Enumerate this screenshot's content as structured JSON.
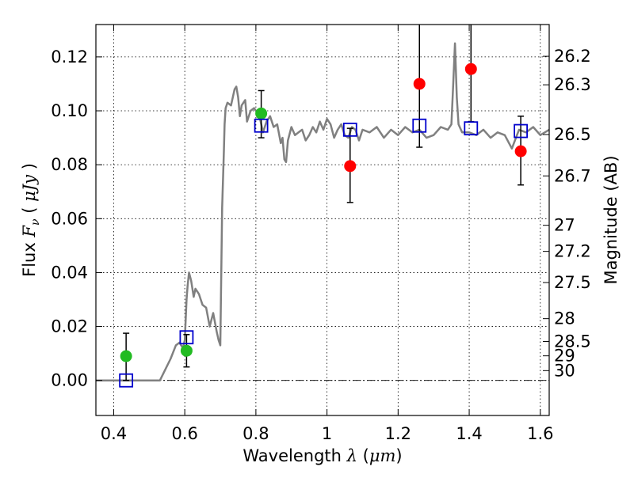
{
  "chart_data": {
    "type": "scatter",
    "x_axis": {
      "label_prefix": "Wavelength ",
      "label_symbol": "λ",
      "label_unit_open": " (",
      "label_unit": "μm",
      "label_unit_close": ")",
      "range": [
        0.35,
        1.625
      ],
      "ticks": [
        {
          "value": 0.4,
          "label": "0.4"
        },
        {
          "value": 0.6,
          "label": "0.6"
        },
        {
          "value": 0.8,
          "label": "0.8"
        },
        {
          "value": 1.0,
          "label": "1"
        },
        {
          "value": 1.2,
          "label": "1.2"
        },
        {
          "value": 1.4,
          "label": "1.4"
        },
        {
          "value": 1.6,
          "label": "1.6"
        }
      ]
    },
    "y_axis_left": {
      "label_prefix": "Flux ",
      "label_symbol": "F",
      "label_subscript": "ν",
      "label_unit_open": " ( ",
      "label_unit": "μJy",
      "label_unit_close": " )",
      "range": [
        -0.013,
        0.132
      ],
      "ticks": [
        {
          "value": 0.0,
          "label": "0.00"
        },
        {
          "value": 0.02,
          "label": "0.02"
        },
        {
          "value": 0.04,
          "label": "0.04"
        },
        {
          "value": 0.06,
          "label": "0.06"
        },
        {
          "value": 0.08,
          "label": "0.08"
        },
        {
          "value": 0.1,
          "label": "0.10"
        },
        {
          "value": 0.12,
          "label": "0.12"
        }
      ]
    },
    "y_axis_right": {
      "label": "Magnitude (AB)",
      "ticks": [
        {
          "value": 26.2,
          "label": "26.2"
        },
        {
          "value": 26.3,
          "label": "26.3"
        },
        {
          "value": 26.5,
          "label": "26.5"
        },
        {
          "value": 26.7,
          "label": "26.7"
        },
        {
          "value": 27,
          "label": "27"
        },
        {
          "value": 27.2,
          "label": "27.2"
        },
        {
          "value": 27.5,
          "label": "27.5"
        },
        {
          "value": 28,
          "label": "28"
        },
        {
          "value": 28.5,
          "label": "28.5"
        },
        {
          "value": 29,
          "label": "29"
        },
        {
          "value": 30,
          "label": "30"
        }
      ]
    },
    "grid": true,
    "zero_line": true,
    "model_spectrum": {
      "color": "#808080",
      "x": [
        0.35,
        0.53,
        0.545,
        0.56,
        0.575,
        0.585,
        0.595,
        0.6,
        0.605,
        0.608,
        0.612,
        0.618,
        0.625,
        0.63,
        0.635,
        0.64,
        0.645,
        0.65,
        0.66,
        0.67,
        0.68,
        0.69,
        0.695,
        0.7,
        0.705,
        0.71,
        0.712,
        0.715,
        0.72,
        0.73,
        0.74,
        0.745,
        0.75,
        0.755,
        0.76,
        0.77,
        0.775,
        0.785,
        0.795,
        0.81,
        0.82,
        0.83,
        0.84,
        0.85,
        0.86,
        0.87,
        0.875,
        0.88,
        0.885,
        0.89,
        0.9,
        0.91,
        0.92,
        0.93,
        0.94,
        0.95,
        0.96,
        0.97,
        0.98,
        0.99,
        1.0,
        1.01,
        1.02,
        1.03,
        1.04,
        1.05,
        1.06,
        1.07,
        1.08,
        1.09,
        1.1,
        1.12,
        1.14,
        1.16,
        1.18,
        1.2,
        1.22,
        1.24,
        1.26,
        1.28,
        1.3,
        1.32,
        1.34,
        1.35,
        1.355,
        1.36,
        1.365,
        1.37,
        1.38,
        1.4,
        1.42,
        1.44,
        1.46,
        1.48,
        1.5,
        1.52,
        1.54,
        1.56,
        1.58,
        1.6,
        1.625
      ],
      "y": [
        0.0,
        0.0,
        0.004,
        0.008,
        0.013,
        0.014,
        0.012,
        0.015,
        0.03,
        0.035,
        0.04,
        0.037,
        0.031,
        0.034,
        0.033,
        0.032,
        0.03,
        0.028,
        0.027,
        0.02,
        0.025,
        0.018,
        0.015,
        0.013,
        0.064,
        0.085,
        0.095,
        0.101,
        0.103,
        0.102,
        0.108,
        0.109,
        0.105,
        0.098,
        0.102,
        0.104,
        0.096,
        0.1,
        0.101,
        0.098,
        0.092,
        0.096,
        0.098,
        0.094,
        0.095,
        0.088,
        0.09,
        0.082,
        0.081,
        0.089,
        0.094,
        0.091,
        0.092,
        0.093,
        0.089,
        0.091,
        0.094,
        0.092,
        0.096,
        0.093,
        0.097,
        0.095,
        0.09,
        0.093,
        0.095,
        0.091,
        0.09,
        0.094,
        0.093,
        0.089,
        0.093,
        0.092,
        0.094,
        0.09,
        0.093,
        0.091,
        0.094,
        0.092,
        0.093,
        0.09,
        0.091,
        0.094,
        0.093,
        0.095,
        0.11,
        0.125,
        0.105,
        0.095,
        0.092,
        0.092,
        0.091,
        0.093,
        0.09,
        0.092,
        0.091,
        0.086,
        0.093,
        0.092,
        0.094,
        0.091,
        0.093
      ]
    },
    "observed_upper_limits": {
      "color": "#22bb22",
      "points": [
        {
          "x": 0.435,
          "y": 0.009,
          "err_lo": 0.009,
          "err_hi": 0.0085
        },
        {
          "x": 0.605,
          "y": 0.011,
          "err_lo": 0.006,
          "err_hi": 0.006
        },
        {
          "x": 0.815,
          "y": 0.099,
          "err_lo": 0.009,
          "err_hi": 0.0085
        }
      ]
    },
    "observed_detections": {
      "color": "#ff0000",
      "points": [
        {
          "x": 1.065,
          "y": 0.0795,
          "err_lo": 0.0135,
          "err_hi": 0.014
        },
        {
          "x": 1.26,
          "y": 0.11,
          "err_lo": 0.0235,
          "err_hi": 0.025
        },
        {
          "x": 1.405,
          "y": 0.1155,
          "err_lo": 0.0195,
          "err_hi": 0.018
        },
        {
          "x": 1.545,
          "y": 0.085,
          "err_lo": 0.0125,
          "err_hi": 0.013
        }
      ]
    },
    "model_photometry": {
      "color": "#0000cc",
      "points": [
        {
          "x": 0.435,
          "y": 0.0
        },
        {
          "x": 0.605,
          "y": 0.016
        },
        {
          "x": 0.815,
          "y": 0.0945
        },
        {
          "x": 1.065,
          "y": 0.093
        },
        {
          "x": 1.26,
          "y": 0.0945
        },
        {
          "x": 1.405,
          "y": 0.0935
        },
        {
          "x": 1.545,
          "y": 0.0925
        }
      ]
    }
  }
}
